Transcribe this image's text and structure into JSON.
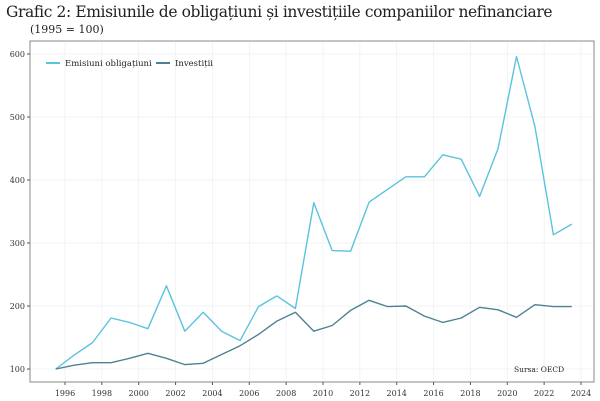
{
  "chart_data": {
    "type": "line",
    "title": "Grafic 2: Emisiunile de obligațiuni și investițiile companiilor nefinanciare",
    "subtitle": "(1995 = 100)",
    "x": [
      1995.5,
      1996.5,
      1997.5,
      1998.5,
      1999.5,
      2000.5,
      2001.5,
      2002.5,
      2003.5,
      2004.5,
      2005.5,
      2006.5,
      2007.5,
      2008.5,
      2009.5,
      2010.5,
      2011.5,
      2012.5,
      2013.5,
      2014.5,
      2015.5,
      2016.5,
      2017.5,
      2018.5,
      2019.5,
      2020.5,
      2021.5,
      2022.5,
      2023.5
    ],
    "series": [
      {
        "name": "Emisiuni obligațiuni",
        "color": "#5bc3de",
        "values": [
          100,
          122,
          142,
          181,
          174,
          164,
          232,
          160,
          190,
          160,
          145,
          199,
          216,
          196,
          364,
          288,
          287,
          365,
          385,
          405,
          405,
          440,
          433,
          374,
          450,
          596,
          485,
          313,
          330
        ]
      },
      {
        "name": "Investiții",
        "color": "#4e8293",
        "values": [
          100,
          106,
          110,
          110,
          117,
          125,
          117,
          107,
          109,
          123,
          137,
          155,
          176,
          190,
          160,
          169,
          193,
          209,
          199,
          200,
          184,
          174,
          181,
          198,
          194,
          182,
          202,
          199,
          199
        ]
      }
    ],
    "xticks": [
      1996,
      1998,
      2000,
      2002,
      2004,
      2006,
      2008,
      2010,
      2012,
      2014,
      2016,
      2018,
      2020,
      2022,
      2024
    ],
    "yticks": [
      100,
      200,
      300,
      400,
      500,
      600
    ],
    "xlim": [
      1994.5,
      2025
    ],
    "ylim": [
      80,
      620
    ],
    "grid": true,
    "legend_position": "top-left",
    "source": "Sursa: OECD"
  }
}
